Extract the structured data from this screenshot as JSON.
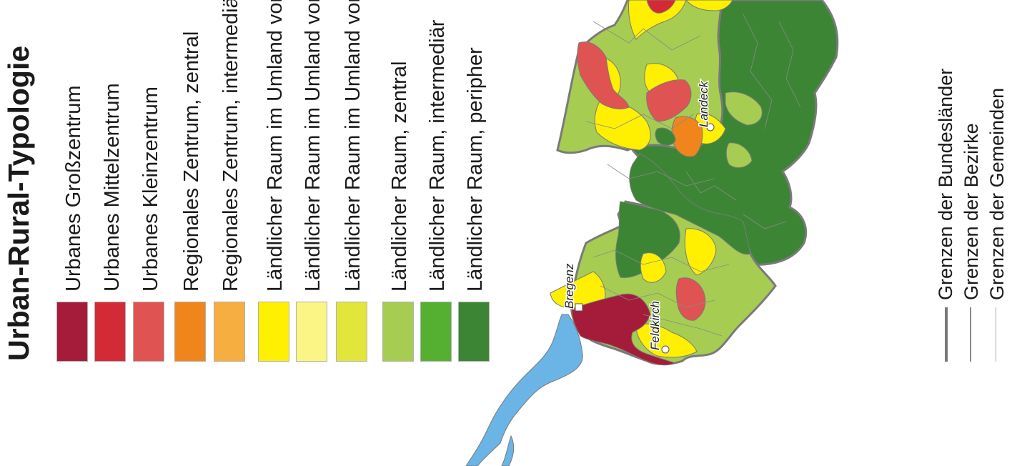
{
  "legend": {
    "title": "Urban-Rural-Typologie",
    "categories": [
      {
        "label": "Urbanes Großzentrum",
        "color": "#a51c3a"
      },
      {
        "label": "Urbanes Mittelzentrum",
        "color": "#d42a35"
      },
      {
        "label": "Urbanes Kleinzentrum",
        "color": "#e05353"
      },
      {
        "label": "Regionales Zentrum, zentral",
        "color": "#f0851c"
      },
      {
        "label": "Regionales Zentrum, intermediär",
        "color": "#f5ae3f"
      },
      {
        "label": "Ländlicher Raum im Umland von Zentren, zentral",
        "color": "#ffef00"
      },
      {
        "label": "Ländlicher Raum im Umland von Zentren, intermediär",
        "color": "#fbf585"
      },
      {
        "label": "Ländlicher Raum im Umland von Zentren, peripher",
        "color": "#e2e63a"
      },
      {
        "label": "Ländlicher Raum, zentral",
        "color": "#a6cc52"
      },
      {
        "label": "Ländlicher Raum, intermediär",
        "color": "#55b032"
      },
      {
        "label": "Ländlicher Raum, peripher",
        "color": "#3c8535"
      }
    ],
    "boundaries": [
      {
        "label": "Grenzen der Bundesländer",
        "color": "#777777"
      },
      {
        "label": "Grenzen der Bezirke",
        "color": "#888888"
      },
      {
        "label": "Grenzen der Gemeinden",
        "color": "#aaaaaa"
      }
    ]
  },
  "map": {
    "cities": [
      "Bregenz",
      "Feldkirch",
      "Landeck"
    ],
    "lake_color": "#6ab4e6",
    "boundary_color": "#7a7a7a"
  }
}
